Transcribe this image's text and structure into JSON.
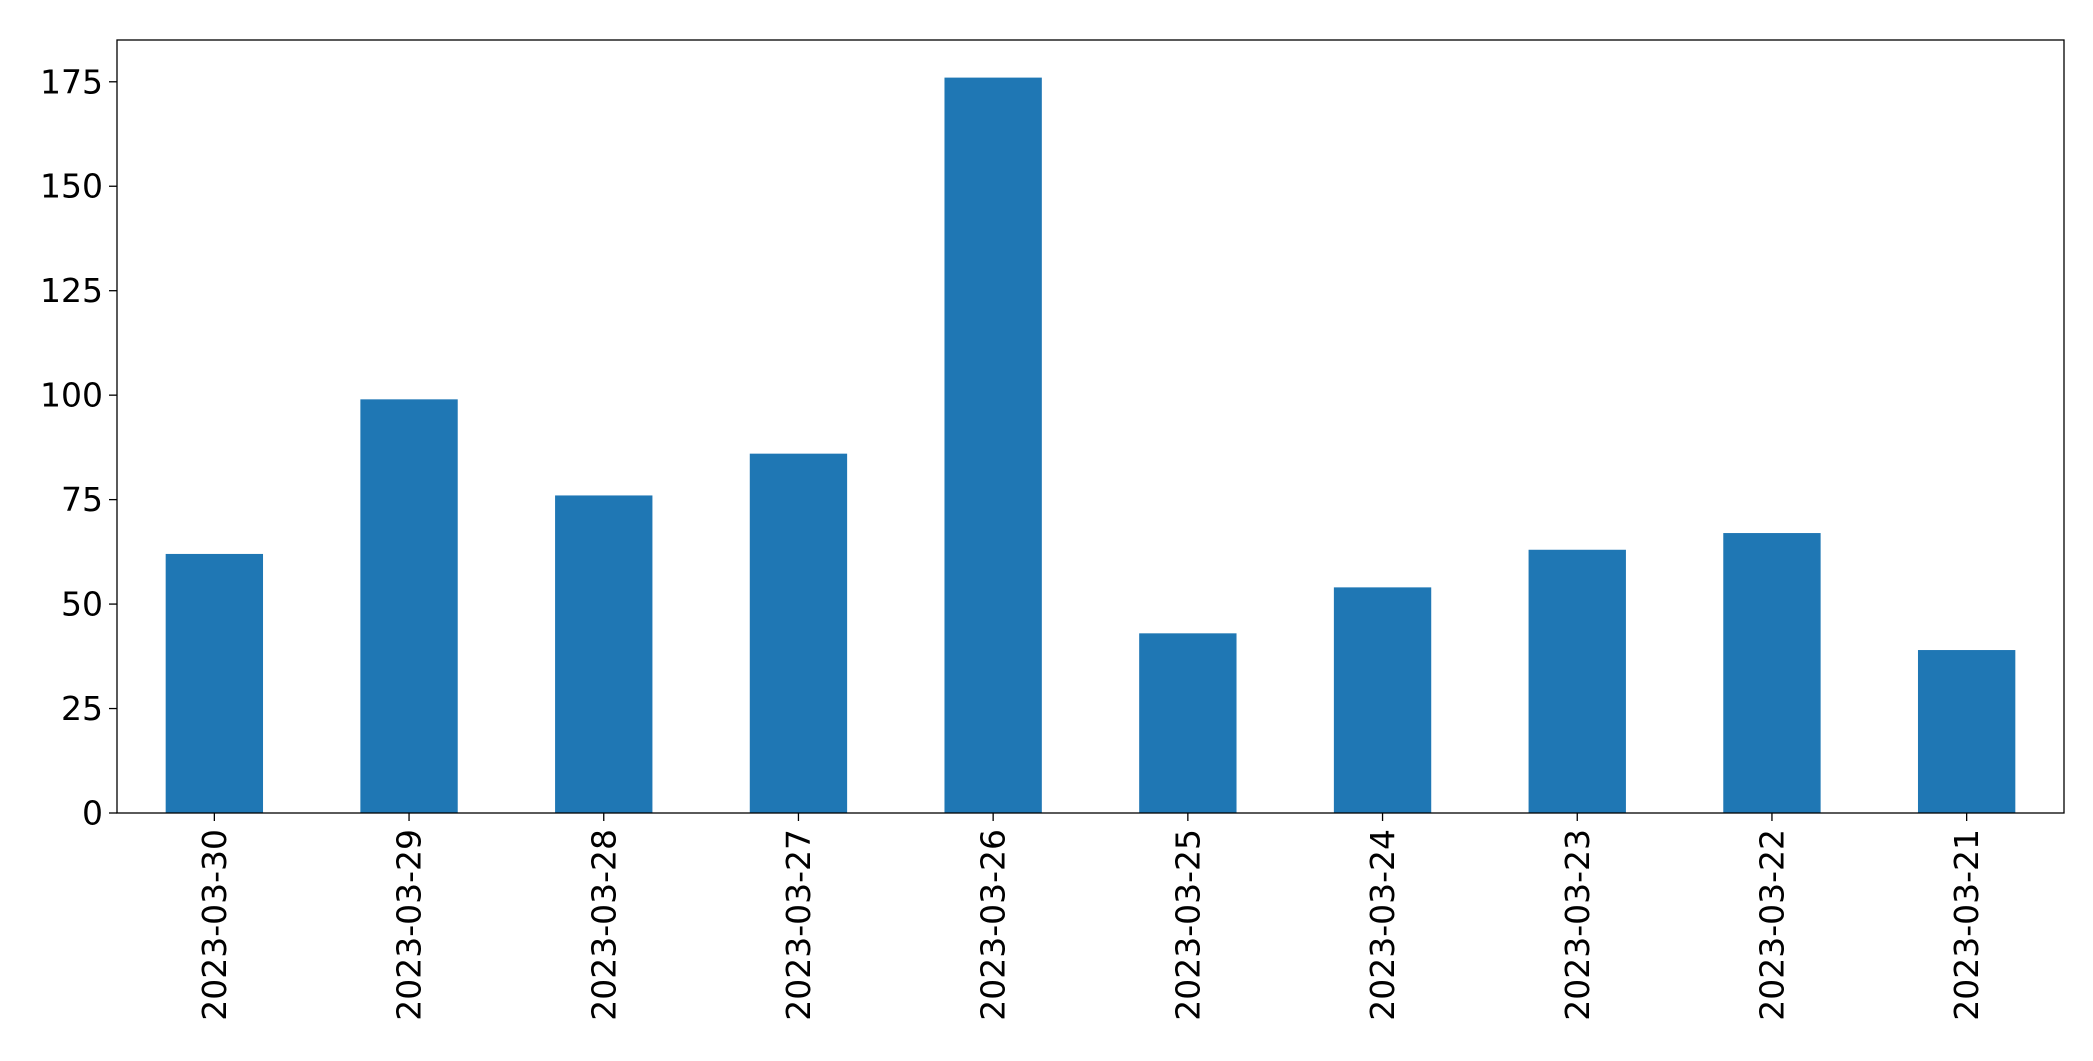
{
  "chart_data": {
    "type": "bar",
    "categories": [
      "2023-03-30",
      "2023-03-29",
      "2023-03-28",
      "2023-03-27",
      "2023-03-26",
      "2023-03-25",
      "2023-03-24",
      "2023-03-23",
      "2023-03-22",
      "2023-03-21"
    ],
    "values": [
      62,
      99,
      76,
      86,
      176,
      43,
      54,
      63,
      67,
      39
    ],
    "color": "#1f77b4",
    "ylim": [
      0,
      185
    ],
    "yticks": [
      0,
      25,
      50,
      75,
      100,
      125,
      150,
      175
    ],
    "grid": false
  }
}
